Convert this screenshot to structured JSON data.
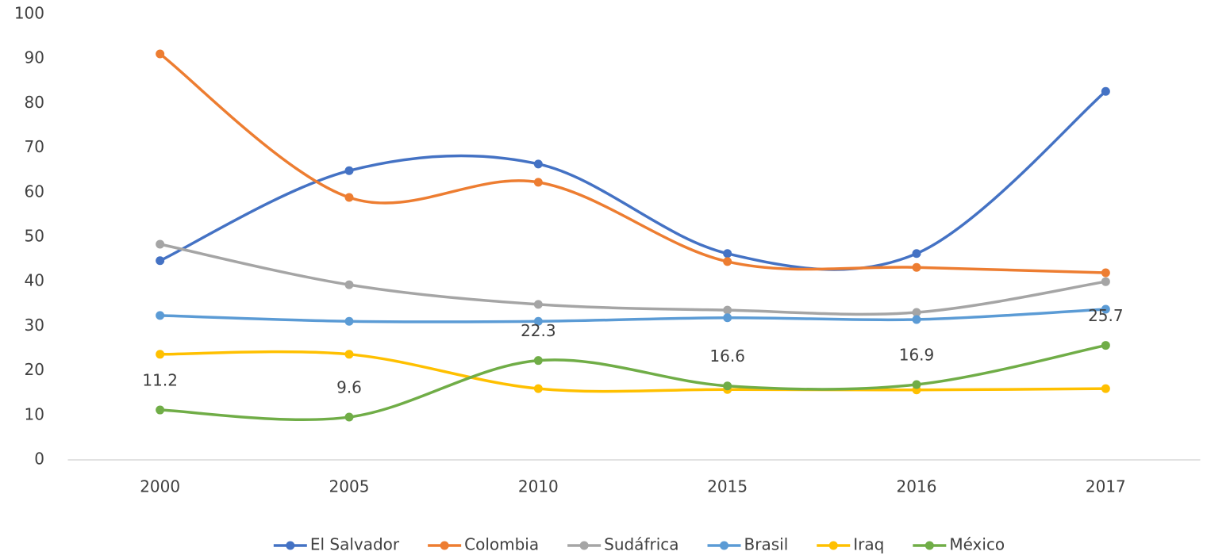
{
  "chart_data": {
    "type": "line",
    "smooth": true,
    "grid": false,
    "legend": "bottom",
    "categories": [
      "2000",
      "2005",
      "2010",
      "2015",
      "2016",
      "2017"
    ],
    "ylim": [
      0,
      100
    ],
    "yticks": [
      0,
      10,
      20,
      30,
      40,
      50,
      60,
      70,
      80,
      90,
      100
    ],
    "series": [
      {
        "name": "El Salvador",
        "color": "#4472c4",
        "values": [
          44.7,
          64.9,
          66.4,
          46.3,
          46.3,
          82.7
        ]
      },
      {
        "name": "Colombia",
        "color": "#ed7d31",
        "values": [
          91.1,
          58.9,
          62.3,
          44.5,
          43.2,
          42.0
        ]
      },
      {
        "name": "Sudáfrica",
        "color": "#a5a5a5",
        "values": [
          48.4,
          39.3,
          34.9,
          33.6,
          33.1,
          40.0
        ]
      },
      {
        "name": "Brasil",
        "color": "#5b9bd5",
        "values": [
          32.4,
          31.1,
          31.1,
          31.9,
          31.5,
          33.8
        ]
      },
      {
        "name": "Iraq",
        "color": "#ffc000",
        "values": [
          23.7,
          23.7,
          16.0,
          15.8,
          15.7,
          16.0
        ]
      },
      {
        "name": "México",
        "color": "#70ad47",
        "values": [
          11.2,
          9.6,
          22.3,
          16.6,
          16.9,
          25.7
        ],
        "data_labels": true
      }
    ]
  }
}
